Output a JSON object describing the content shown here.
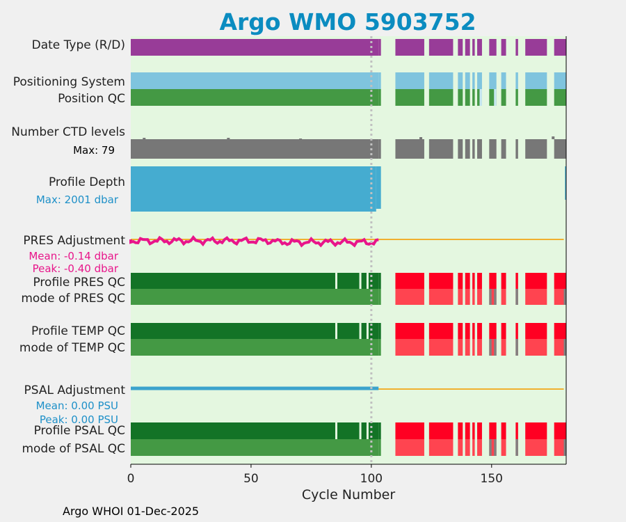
{
  "title": "Argo WMO 5903752",
  "footer": "Argo WHOI 01-Dec-2025",
  "colors": {
    "title": "#0b8cc0",
    "background": "#f0f0f0",
    "plot_bg": "#e4f7e0",
    "date_type": "#983c98",
    "positioning": "#7fc4de",
    "qc_good": "#449944",
    "qc_profile_good": "#137326",
    "qc_bad": "#ff0022",
    "qc_bad_mode": "#ff4450",
    "ctd": "#777777",
    "depth": "#45acd0",
    "pres_adj": "#e8158a",
    "psal_adj": "#3ba3cc",
    "zero_line": "#f0b030",
    "dotted_line": "#c0c0c0"
  },
  "chart_data": {
    "type": "table",
    "xlabel": "Cycle Number",
    "xlim": [
      0,
      181
    ],
    "xticks": [
      0,
      50,
      100,
      150
    ],
    "vline_cycle": 100,
    "rows": [
      {
        "key": "date",
        "label": "Date Type (R/D)"
      },
      {
        "key": "possys",
        "label": "Positioning System"
      },
      {
        "key": "posqc",
        "label": "Position QC"
      },
      {
        "key": "ctd",
        "label": "Number CTD levels",
        "sub": "Max: 79"
      },
      {
        "key": "depth",
        "label": "Profile Depth",
        "sub": "Max: 2001 dbar"
      },
      {
        "key": "presadj",
        "label": "PRES Adjustment",
        "sub": "Mean: -0.14 dbar",
        "sub2": "Peak: -0.40 dbar"
      },
      {
        "key": "presqc",
        "label": "Profile PRES QC"
      },
      {
        "key": "presmode",
        "label": "mode of PRES QC"
      },
      {
        "key": "tempqc",
        "label": "Profile TEMP QC"
      },
      {
        "key": "tempmode",
        "label": "mode of TEMP QC"
      },
      {
        "key": "psaladj",
        "label": "PSAL Adjustment",
        "sub": "Mean: 0.00 PSU",
        "sub2": "Peak: 0.00 PSU"
      },
      {
        "key": "psalqc",
        "label": "Profile PSAL QC"
      },
      {
        "key": "psalmode",
        "label": "mode of PSAL QC"
      }
    ],
    "profile_segments": [
      [
        0,
        103
      ],
      [
        103,
        104
      ],
      [
        110,
        122
      ],
      [
        124,
        134
      ],
      [
        136,
        138
      ],
      [
        139,
        141
      ],
      [
        142,
        143
      ],
      [
        144,
        146
      ],
      [
        149,
        152
      ],
      [
        154,
        156
      ],
      [
        160,
        161
      ],
      [
        164,
        173
      ],
      [
        176,
        181
      ]
    ],
    "qc_gaps": [
      85,
      95,
      98
    ],
    "pres_mean": -0.14,
    "pres_peak": -0.4,
    "pres_max_cycle": 99,
    "psal_mean": 0.0,
    "psal_peak": 0.0,
    "ctd_max": 79,
    "depth_max": 2001
  }
}
